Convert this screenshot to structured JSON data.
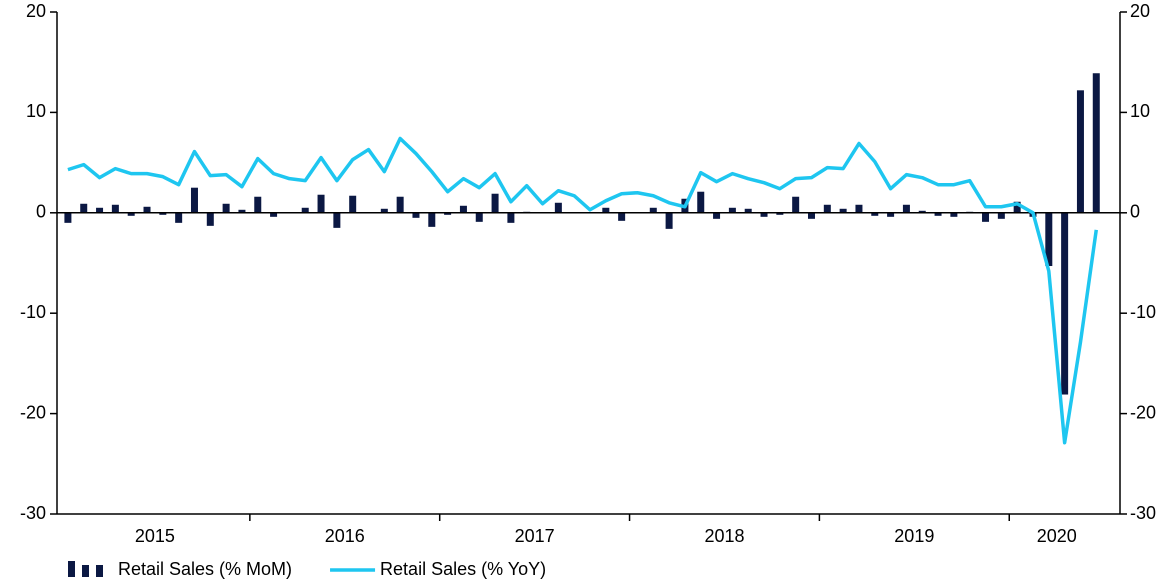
{
  "chart_data": {
    "type": "bar_line",
    "categories": [
      null,
      null,
      null,
      null,
      null,
      null,
      "2015",
      null,
      null,
      null,
      null,
      null,
      null,
      null,
      null,
      null,
      null,
      null,
      "2016",
      null,
      null,
      null,
      null,
      null,
      null,
      null,
      null,
      null,
      null,
      null,
      "2017",
      null,
      null,
      null,
      null,
      null,
      null,
      null,
      null,
      null,
      null,
      null,
      "2018",
      null,
      null,
      null,
      null,
      null,
      null,
      null,
      null,
      null,
      null,
      null,
      "2019",
      null,
      null,
      null,
      null,
      null,
      null,
      null,
      null,
      "2020",
      null,
      null
    ],
    "series": [
      {
        "name": "Retail Sales (% MoM)",
        "color": "#0b1843",
        "type": "bar",
        "values": [
          -1.0,
          0.9,
          0.5,
          0.8,
          -0.3,
          0.6,
          -0.2,
          -1.0,
          2.5,
          -1.3,
          0.9,
          0.3,
          1.6,
          -0.4,
          0.0,
          0.5,
          1.8,
          -1.5,
          1.7,
          0.0,
          0.4,
          1.6,
          -0.5,
          -1.4,
          -0.2,
          0.7,
          -0.9,
          1.9,
          -1.0,
          0.1,
          0.0,
          1.0,
          0.0,
          0.0,
          0.5,
          -0.8,
          0.0,
          0.5,
          -1.6,
          1.4,
          2.1,
          -0.6,
          0.5,
          0.4,
          -0.4,
          -0.2,
          1.6,
          -0.6,
          0.8,
          0.4,
          0.8,
          -0.3,
          -0.4,
          0.8,
          0.2,
          -0.3,
          -0.4,
          0.1,
          -0.9,
          -0.6,
          1.1,
          -0.4,
          -5.3,
          -18.1,
          12.2,
          13.9
        ]
      },
      {
        "name": "Retail Sales (% YoY)",
        "color": "#1ec6f0",
        "type": "line",
        "axis": "y2",
        "values": [
          4.3,
          4.8,
          3.5,
          4.4,
          3.9,
          3.9,
          3.6,
          2.8,
          6.1,
          3.7,
          3.8,
          2.6,
          5.4,
          3.9,
          3.4,
          3.2,
          5.5,
          3.2,
          5.3,
          6.3,
          4.1,
          7.4,
          5.9,
          4.1,
          2.1,
          3.4,
          2.5,
          3.9,
          1.1,
          2.7,
          0.9,
          2.2,
          1.7,
          0.3,
          1.2,
          1.9,
          2.0,
          1.7,
          1.0,
          0.6,
          4.0,
          3.1,
          3.9,
          3.4,
          3.0,
          2.4,
          3.4,
          3.5,
          4.5,
          4.4,
          6.9,
          5.1,
          2.4,
          3.8,
          3.5,
          2.8,
          2.8,
          3.2,
          0.6,
          0.6,
          0.9,
          0.0,
          -5.8,
          -22.9,
          -12.9,
          -1.7
        ]
      }
    ],
    "ylim": [
      -30,
      20
    ],
    "yticks": [
      -30,
      -20,
      -10,
      0,
      10,
      20
    ],
    "y2lim": [
      -30,
      20
    ],
    "y2ticks": [
      -30,
      -20,
      -10,
      0,
      10,
      20
    ],
    "legend": "bottom"
  }
}
